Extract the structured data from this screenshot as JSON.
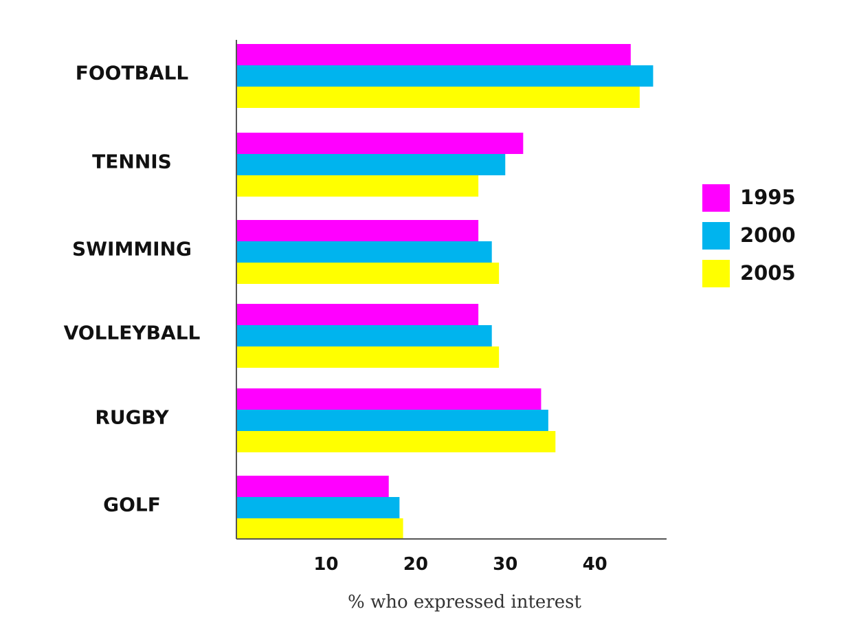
{
  "chart_data": {
    "type": "bar",
    "orientation": "horizontal",
    "categories": [
      "FOOTBALL",
      "TENNIS",
      "SWIMMING",
      "VOLLEYBALL",
      "RUGBY",
      "GOLF"
    ],
    "series": [
      {
        "name": "1995",
        "color": "#ff00ff",
        "values": [
          44,
          32,
          27,
          27,
          34,
          17
        ]
      },
      {
        "name": "2000",
        "color": "#00b4ee",
        "values": [
          46.5,
          30,
          28.5,
          28.5,
          34.8,
          18.2
        ]
      },
      {
        "name": "2005",
        "color": "#ffff00",
        "values": [
          45,
          27,
          29.3,
          29.3,
          35.6,
          18.6
        ]
      }
    ],
    "xlabel": "% who expressed interest",
    "ylabel": "",
    "title": "",
    "xlim": [
      0,
      48
    ],
    "xticks": [
      10,
      20,
      30,
      40
    ],
    "grid": false,
    "legend": "right"
  }
}
